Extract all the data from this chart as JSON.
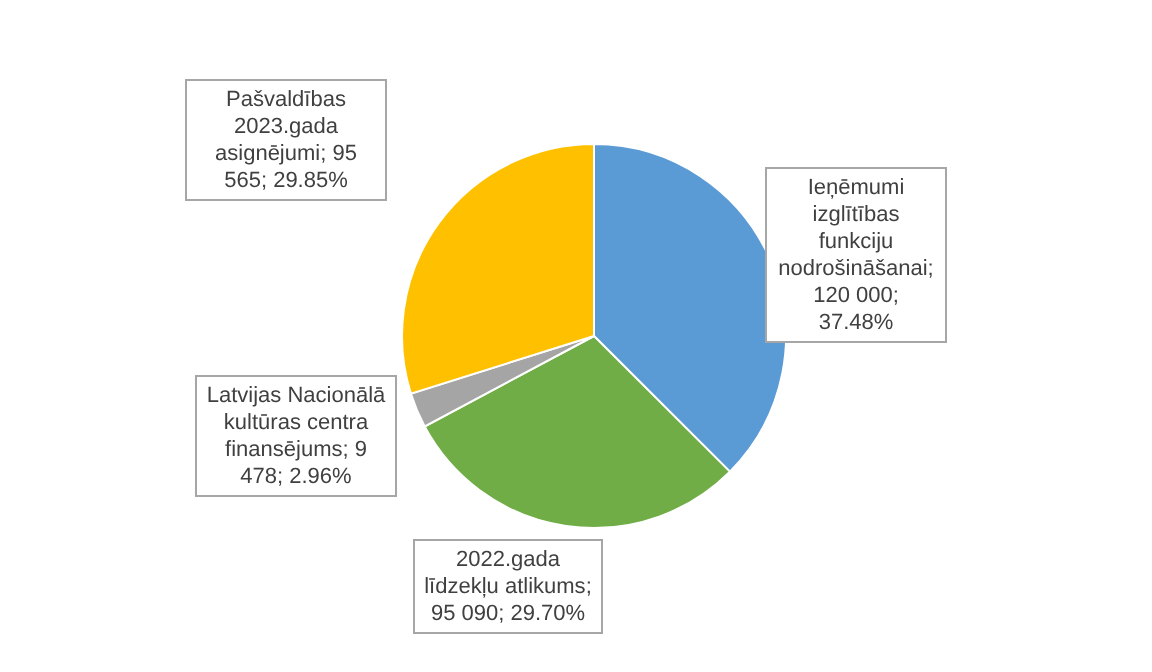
{
  "chart_data": {
    "type": "pie",
    "categories": [
      "Ieņēmumi izglītības funkciju nodrošināšanai",
      "2022.gada līdzekļu atlikums",
      "Latvijas Nacionālā kultūras centra finansējums",
      "Pašvaldības 2023.gada asignējumi"
    ],
    "values": [
      120000,
      95090,
      9478,
      95565
    ],
    "value_labels": [
      "; 120 000; 37.48%",
      "; 95 090; 29.70%",
      "; 9 478; 2.96%",
      "; 95 565; 29.85%"
    ],
    "colors": [
      "#5b9bd5",
      "#70ad47",
      "#a5a5a5",
      "#ffc000"
    ]
  }
}
